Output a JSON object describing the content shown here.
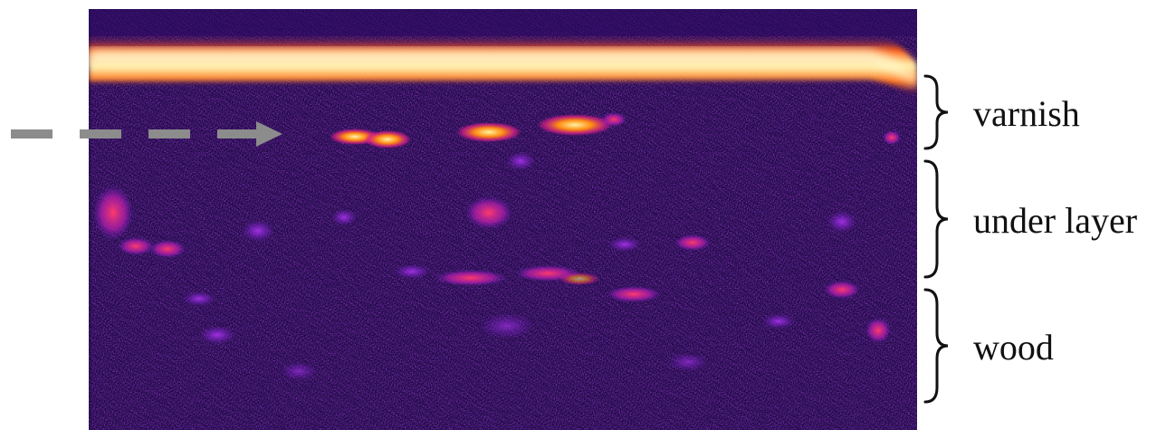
{
  "figure": {
    "layers": [
      {
        "label": "varnish"
      },
      {
        "label": "under layer"
      },
      {
        "label": "wood"
      }
    ],
    "colors": {
      "background": "#ffffff",
      "arrow": "#8c8c8c",
      "brace": "#111111",
      "image_base": "#1a0840",
      "surface_hot": "#fff0a0",
      "hot_spot": "#ff6a10",
      "speckle": "#7a20d0"
    },
    "icons": [
      "dashed-arrow-icon",
      "curly-brace-icon"
    ]
  }
}
